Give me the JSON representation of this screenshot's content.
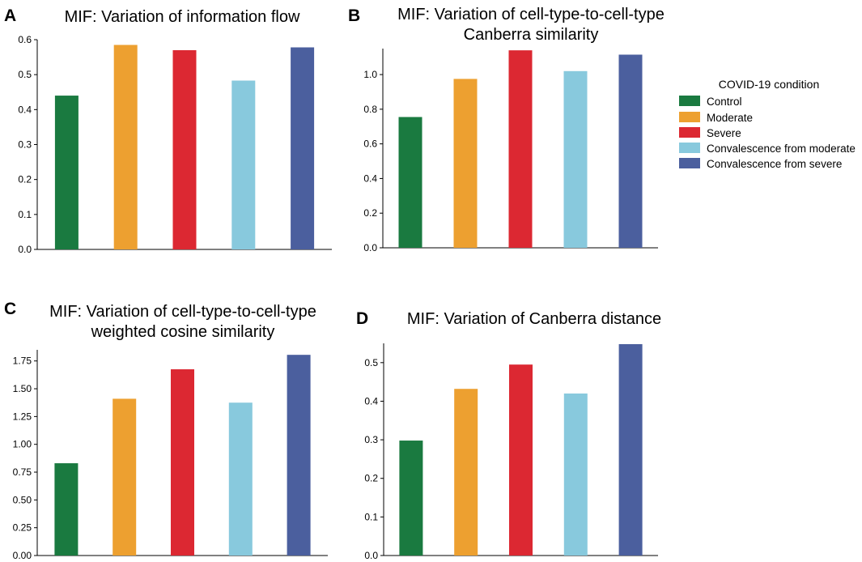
{
  "legend": {
    "title": "COVID-19 condition",
    "entries": [
      {
        "label": "Control",
        "color": "#1a7a40"
      },
      {
        "label": "Moderate",
        "color": "#eda030"
      },
      {
        "label": "Severe",
        "color": "#dc2832"
      },
      {
        "label": "Convalescence from moderate",
        "color": "#88c9dd"
      },
      {
        "label": "Convalescence from severe",
        "color": "#4b5f9e"
      }
    ]
  },
  "chart_data": [
    {
      "panel": "A",
      "type": "bar",
      "title_lines": [
        "MIF: Variation of information flow"
      ],
      "categories": [
        "Control",
        "Moderate",
        "Severe",
        "Convalescence from moderate",
        "Convalescence from severe"
      ],
      "values": [
        0.44,
        0.585,
        0.57,
        0.483,
        0.578
      ],
      "ylim": [
        0,
        0.6
      ],
      "yticks": [
        0.0,
        0.1,
        0.2,
        0.3,
        0.4,
        0.5,
        0.6
      ],
      "ytick_labels": [
        "0.0",
        "0.1",
        "0.2",
        "0.3",
        "0.4",
        "0.5",
        "0.6"
      ],
      "xlabel": "",
      "ylabel": ""
    },
    {
      "panel": "B",
      "type": "bar",
      "title_lines": [
        "MIF: Variation of cell-type-to-cell-type",
        "Canberra similarity"
      ],
      "categories": [
        "Control",
        "Moderate",
        "Severe",
        "Convalescence from moderate",
        "Convalescence from severe"
      ],
      "values": [
        0.755,
        0.975,
        1.14,
        1.02,
        1.115
      ],
      "ylim": [
        0,
        1.15
      ],
      "yticks": [
        0.0,
        0.2,
        0.4,
        0.6,
        0.8,
        1.0
      ],
      "ytick_labels": [
        "0.0",
        "0.2",
        "0.4",
        "0.6",
        "0.8",
        "1.0"
      ],
      "xlabel": "",
      "ylabel": ""
    },
    {
      "panel": "C",
      "type": "bar",
      "title_lines": [
        "MIF: Variation of cell-type-to-cell-type",
        "weighted cosine similarity"
      ],
      "categories": [
        "Control",
        "Moderate",
        "Severe",
        "Convalescence from moderate",
        "Convalescence from severe"
      ],
      "values": [
        0.83,
        1.41,
        1.675,
        1.375,
        1.805
      ],
      "ylim": [
        0,
        1.85
      ],
      "yticks": [
        0.0,
        0.25,
        0.5,
        0.75,
        1.0,
        1.25,
        1.5,
        1.75
      ],
      "ytick_labels": [
        "0.00",
        "0.25",
        "0.50",
        "0.75",
        "1.00",
        "1.25",
        "1.50",
        "1.75"
      ],
      "xlabel": "",
      "ylabel": ""
    },
    {
      "panel": "D",
      "type": "bar",
      "title_lines": [
        "MIF: Variation of Canberra distance"
      ],
      "categories": [
        "Control",
        "Moderate",
        "Severe",
        "Convalescence from moderate",
        "Convalescence from severe"
      ],
      "values": [
        0.298,
        0.432,
        0.495,
        0.42,
        0.548
      ],
      "ylim": [
        0,
        0.55
      ],
      "yticks": [
        0.0,
        0.1,
        0.2,
        0.3,
        0.4,
        0.5
      ],
      "ytick_labels": [
        "0.0",
        "0.1",
        "0.2",
        "0.3",
        "0.4",
        "0.5"
      ],
      "xlabel": "",
      "ylabel": ""
    }
  ]
}
